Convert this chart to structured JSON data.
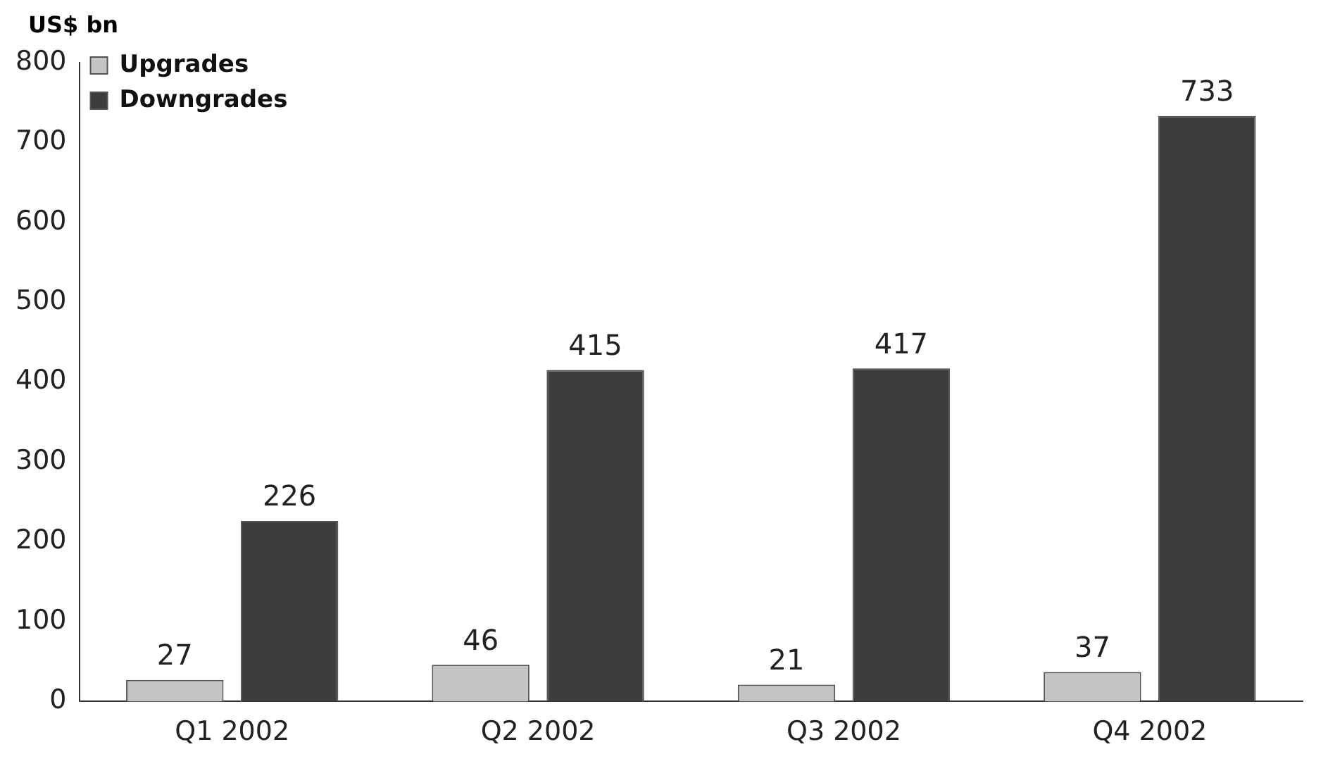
{
  "chart_data": {
    "type": "bar",
    "ylabel": "US$ bn",
    "categories": [
      "Q1 2002",
      "Q2 2002",
      "Q3 2002",
      "Q4 2002"
    ],
    "series": [
      {
        "name": "Upgrades",
        "color": "#c4c4c4",
        "values": [
          27,
          46,
          21,
          37
        ]
      },
      {
        "name": "Downgrades",
        "color": "#3c3c3c",
        "values": [
          226,
          415,
          417,
          733
        ]
      }
    ],
    "ylim": [
      0,
      800
    ],
    "yticks": [
      0,
      100,
      200,
      300,
      400,
      500,
      600,
      700,
      800
    ],
    "grid": false,
    "legend": "top left",
    "data_labels": true
  }
}
